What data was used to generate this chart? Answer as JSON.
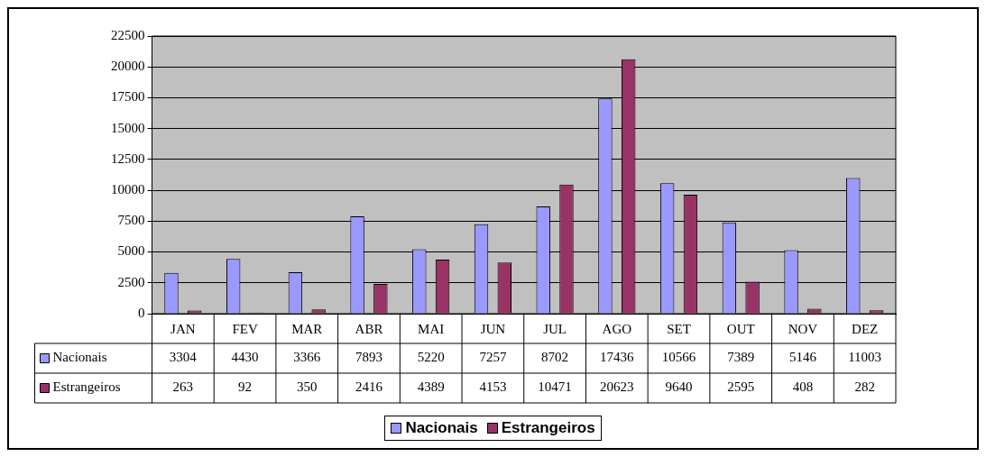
{
  "chart_data": {
    "type": "bar",
    "categories": [
      "JAN",
      "FEV",
      "MAR",
      "ABR",
      "MAI",
      "JUN",
      "JUL",
      "AGO",
      "SET",
      "OUT",
      "NOV",
      "DEZ"
    ],
    "series": [
      {
        "name": "Nacionais",
        "color": "#9999ff",
        "values": [
          3304,
          4430,
          3366,
          7893,
          5220,
          7257,
          8702,
          17436,
          10566,
          7389,
          5146,
          11003
        ]
      },
      {
        "name": "Estrangeiros",
        "color": "#993366",
        "values": [
          263,
          92,
          350,
          2416,
          4389,
          4153,
          10471,
          20623,
          9640,
          2595,
          408,
          282
        ]
      }
    ],
    "ylim": [
      0,
      22500
    ],
    "yticks": [
      0,
      2500,
      5000,
      7500,
      10000,
      12500,
      15000,
      17500,
      20000,
      22500
    ],
    "grid": "y",
    "legend": "bottom",
    "data_labels": true
  }
}
